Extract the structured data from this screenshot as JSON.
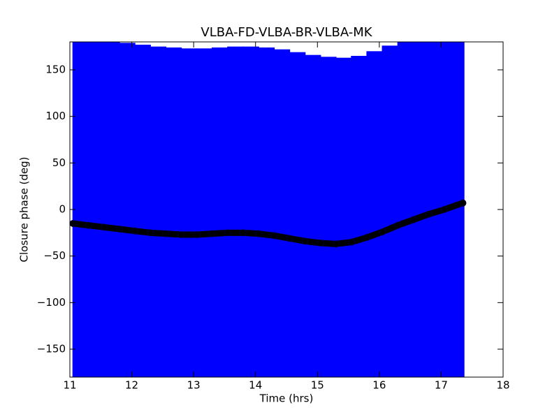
{
  "chart_data": {
    "type": "scatter",
    "title": "VLBA-FD-VLBA-BR-VLBA-MK",
    "x_label": "Time (hrs)",
    "y_label": "Closure phase (deg)",
    "xlim": [
      11,
      18
    ],
    "ylim": [
      -180,
      180
    ],
    "xticks": [
      11,
      12,
      13,
      14,
      15,
      16,
      17,
      18
    ],
    "yticks": [
      {
        "value": -150,
        "label": "−150"
      },
      {
        "value": -100,
        "label": "−100"
      },
      {
        "value": -50,
        "label": "−50"
      },
      0,
      50,
      100,
      150
    ],
    "series": [
      {
        "color": "#000000",
        "error_color": "#0000ff",
        "x": [
          11.05,
          11.3,
          11.55,
          11.8,
          12.05,
          12.3,
          12.55,
          12.8,
          13.05,
          13.3,
          13.55,
          13.8,
          14.05,
          14.3,
          14.55,
          14.8,
          15.05,
          15.3,
          15.55,
          15.8,
          16.05,
          16.3,
          16.55,
          16.8,
          17.05,
          17.35
        ],
        "values": [
          -15,
          -17,
          -19,
          -21,
          -23,
          -25,
          -26,
          -27,
          -27,
          -26,
          -25,
          -25,
          -26,
          -28,
          -31,
          -34,
          -36,
          -37,
          -35,
          -30,
          -24,
          -17,
          -11,
          -5,
          0,
          7
        ],
        "yerr": [
          200,
          200,
          200,
          200,
          200,
          200,
          200,
          200,
          200,
          200,
          200,
          200,
          200,
          200,
          200,
          200,
          200,
          200,
          200,
          200,
          200,
          200,
          200,
          200,
          200,
          200
        ]
      }
    ]
  }
}
